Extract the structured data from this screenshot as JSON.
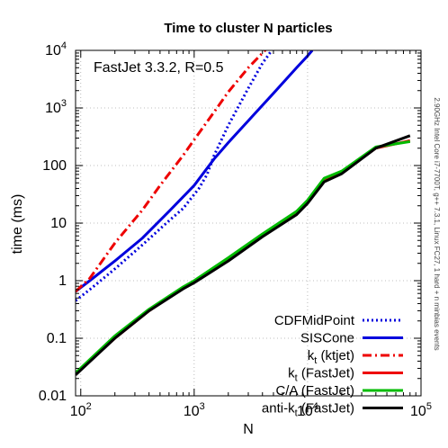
{
  "chart_data": {
    "type": "line",
    "title": "Time to cluster N particles",
    "xlabel": "N",
    "ylabel": "time (ms)",
    "xscale": "log",
    "yscale": "log",
    "xlim": [
      90,
      100000
    ],
    "ylim": [
      0.01,
      10000
    ],
    "grid": true,
    "legend_position": "bottom-right",
    "annotation": "FastJet 3.3.2, R=0.5",
    "side_note": "2.90GHz Intel Core i7-7700T, g++ 7.3.1, Linux FC27, 1 hard + n minbias events",
    "x_ticks": [
      {
        "base": "10",
        "exp": "2"
      },
      {
        "base": "10",
        "exp": "3"
      },
      {
        "base": "10",
        "exp": "4"
      },
      {
        "base": "10",
        "exp": "5"
      }
    ],
    "y_ticks": [
      "0.01",
      "0.1",
      "1",
      "10",
      "100",
      "1000",
      "10000"
    ],
    "y_tick_labels": [
      {
        "base": "0.01",
        "exp": ""
      },
      {
        "base": "0.1",
        "exp": ""
      },
      {
        "base": "1",
        "exp": ""
      },
      {
        "base": "10",
        "exp": ""
      },
      {
        "base": "100",
        "exp": ""
      },
      {
        "base": "10",
        "exp": "3"
      },
      {
        "base": "10",
        "exp": "4"
      }
    ],
    "series": [
      {
        "name": "CDFMidPoint",
        "color": "#0000dd",
        "dash": "dotted",
        "x": [
          90,
          120,
          200,
          350,
          600,
          800,
          1100,
          1300,
          1500,
          2000,
          3000,
          4000,
          5000
        ],
        "y": [
          0.45,
          0.7,
          1.6,
          4.2,
          11,
          18,
          40,
          70,
          150,
          500,
          2200,
          6000,
          11000
        ]
      },
      {
        "name": "SISCone",
        "color": "#0000dd",
        "dash": "solid",
        "x": [
          90,
          120,
          200,
          350,
          600,
          1000,
          1500,
          2000,
          3000,
          5000,
          8000,
          10000,
          11000
        ],
        "y": [
          0.65,
          1.0,
          2.2,
          5.5,
          16,
          45,
          130,
          250,
          600,
          1800,
          5000,
          8000,
          10000
        ]
      },
      {
        "name": "k_t (ktjet)",
        "color": "#ee0000",
        "dash": "dashdot",
        "x": [
          90,
          120,
          200,
          350,
          500,
          800,
          1000,
          1500,
          2000,
          3000,
          4000,
          5000
        ],
        "y": [
          0.65,
          1.1,
          4.5,
          17,
          45,
          150,
          280,
          850,
          1900,
          5000,
          9000,
          14000
        ]
      },
      {
        "name": "k_t (FastJet)",
        "color": "#ee0000",
        "dash": "solid",
        "x": [
          90,
          200,
          400,
          800,
          1000,
          2000,
          4000,
          8000,
          10000,
          14000,
          20000,
          40000,
          80000
        ],
        "y": [
          0.024,
          0.1,
          0.3,
          0.75,
          0.95,
          2.3,
          6,
          15,
          24,
          58,
          75,
          200,
          270
        ]
      },
      {
        "name": "C/A (FastJet)",
        "color": "#00bb00",
        "dash": "solid",
        "x": [
          90,
          200,
          400,
          800,
          1000,
          2000,
          4000,
          8000,
          10000,
          14000,
          20000,
          40000,
          80000
        ],
        "y": [
          0.025,
          0.11,
          0.32,
          0.78,
          1.0,
          2.5,
          6.5,
          16,
          25,
          60,
          80,
          210,
          260
        ]
      },
      {
        "name": "anti-k_t (FastJet)",
        "color": "#000000",
        "dash": "solid",
        "x": [
          90,
          200,
          400,
          800,
          1000,
          2000,
          4000,
          8000,
          10000,
          14000,
          20000,
          40000,
          80000
        ],
        "y": [
          0.023,
          0.1,
          0.3,
          0.72,
          0.92,
          2.2,
          5.8,
          14,
          22,
          52,
          72,
          200,
          330
        ]
      }
    ],
    "legend_labels": [
      {
        "main": "CDFMidPoint",
        "sub": "",
        "rest": ""
      },
      {
        "main": "SISCone",
        "sub": "",
        "rest": ""
      },
      {
        "main": "k",
        "sub": "t",
        "rest": " (ktjet)"
      },
      {
        "main": "k",
        "sub": "t",
        "rest": " (FastJet)"
      },
      {
        "main": "C/A (FastJet)",
        "sub": "",
        "rest": ""
      },
      {
        "main": "anti-k",
        "sub": "t",
        "rest": " (FastJet)"
      }
    ]
  }
}
